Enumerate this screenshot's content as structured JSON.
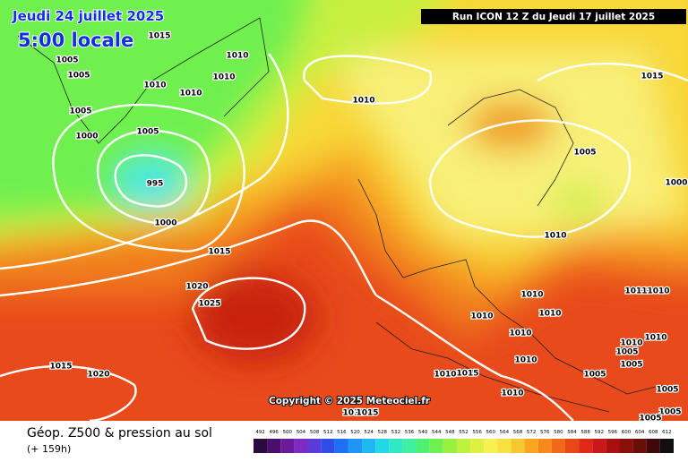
{
  "header": {
    "valid_date": "Jeudi 24 juillet 2025",
    "local_time": "5:00 locale",
    "run": "Run ICON 12 Z du Jeudi 17 juillet 2025"
  },
  "isobar_labels": [
    1015,
    1005,
    1005,
    1010,
    1010,
    1010,
    1010,
    1005,
    1005,
    1000,
    995,
    1000,
    1010,
    1015,
    1005,
    1000,
    1010,
    1015,
    1020,
    1025,
    1010,
    1011,
    1010,
    1010,
    1010,
    1010,
    1010,
    1010,
    1005,
    1010,
    1005,
    1015,
    1020,
    1005,
    1010,
    1015,
    1005,
    1010,
    1005,
    1005,
    1010,
    1015
  ],
  "copyright": "Copyright © 2025 Meteociel.fr",
  "footer": {
    "title": "Géop. Z500 & pression au sol",
    "lead": "(+ 159h)"
  },
  "scale": {
    "values": [
      492,
      496,
      500,
      504,
      508,
      512,
      516,
      520,
      524,
      528,
      532,
      536,
      540,
      544,
      548,
      552,
      556,
      560,
      564,
      568,
      572,
      576,
      580,
      584,
      588,
      592,
      596,
      600,
      604,
      608,
      612
    ],
    "colors": [
      "#2b0a3d",
      "#4b0f6b",
      "#6b1a9a",
      "#7d2bc0",
      "#5a3ad8",
      "#2f4ee8",
      "#1f6ff2",
      "#1f95f5",
      "#20b8f0",
      "#20d8e8",
      "#30e8c8",
      "#40f0a0",
      "#50f070",
      "#70f050",
      "#98f040",
      "#c0f040",
      "#e0f040",
      "#f8f050",
      "#f8e040",
      "#f8c830",
      "#f8a820",
      "#f88818",
      "#f06818",
      "#e84818",
      "#e02818",
      "#c81818",
      "#a81010",
      "#881008",
      "#681008",
      "#400808",
      "#101010"
    ]
  }
}
